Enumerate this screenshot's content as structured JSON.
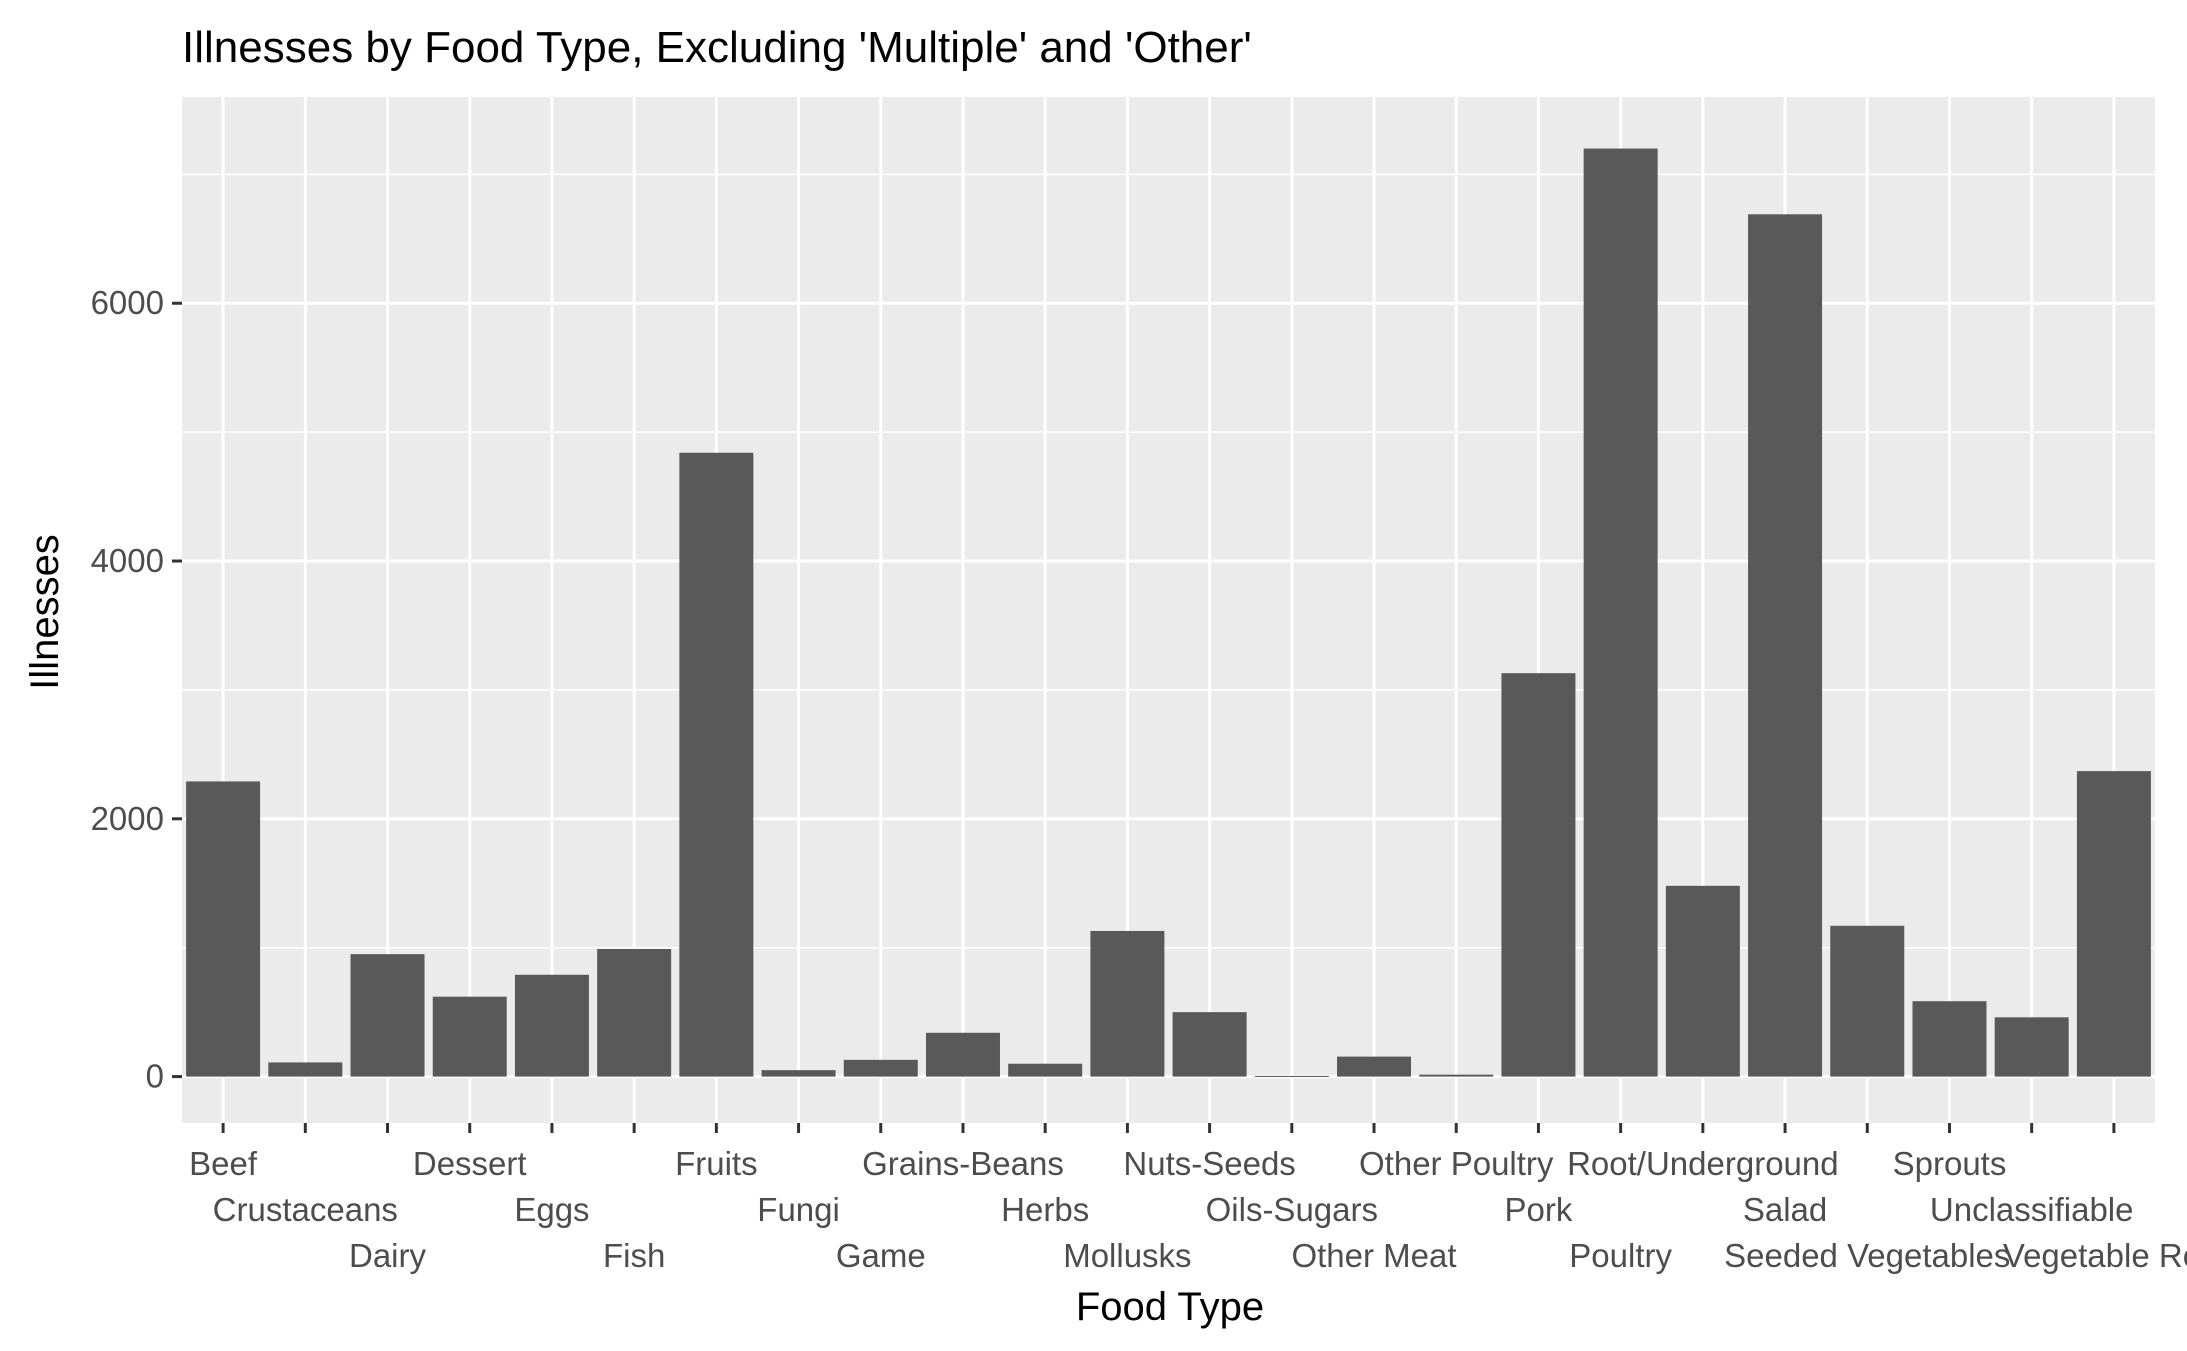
{
  "chart_data": {
    "type": "bar",
    "title": "Illnesses by Food Type, Excluding 'Multiple' and 'Other'",
    "xlabel": "Food Type",
    "ylabel": "Illnesses",
    "ylim": [
      -360,
      7600
    ],
    "yticks": [
      0,
      2000,
      4000,
      6000
    ],
    "grid": true,
    "bar_color": "#595959",
    "panel_color": "#ebebeb",
    "grid_color": "#ffffff",
    "categories": [
      "Beef",
      "Crustaceans",
      "Dairy",
      "Dessert",
      "Eggs",
      "Fish",
      "Fruits",
      "Fungi",
      "Game",
      "Grains-Beans",
      "Herbs",
      "Mollusks",
      "Nuts-Seeds",
      "Oils-Sugars",
      "Other Meat",
      "Other Poultry",
      "Pork",
      "Poultry",
      "Root/Underground",
      "Salad",
      "Seeded Vegetables",
      "Sprouts",
      "Unclassifiable",
      "Vegetable Row"
    ],
    "values": [
      2290,
      110,
      950,
      620,
      790,
      990,
      4840,
      50,
      130,
      340,
      100,
      1130,
      500,
      5,
      155,
      15,
      3130,
      7200,
      1480,
      6690,
      1170,
      585,
      460,
      2370
    ]
  }
}
